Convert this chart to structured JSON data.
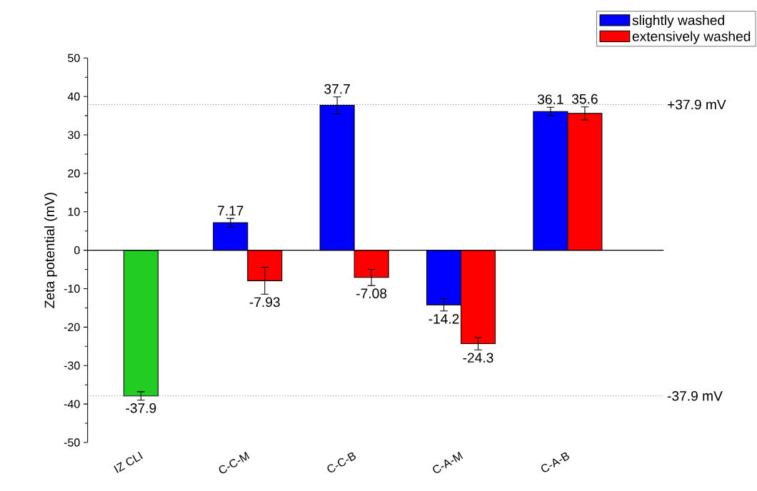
{
  "chart_data": {
    "type": "bar",
    "ylabel": "Zeta potential (mV)",
    "categories": [
      "IZ CLI",
      "C-C-M",
      "C-C-B",
      "C-A-M",
      "C-A-B"
    ],
    "series": [
      {
        "color": "#22cc22",
        "values": [
          -37.9,
          null,
          null,
          null,
          null
        ],
        "errors": [
          1.1,
          null,
          null,
          null,
          null
        ]
      },
      {
        "name": "slightly washed",
        "color": "#0000ff",
        "values": [
          null,
          7.17,
          37.7,
          -14.2,
          36.1
        ],
        "errors": [
          null,
          1.1,
          2.2,
          1.6,
          1.1
        ]
      },
      {
        "name": "extensively washed",
        "color": "#ff0000",
        "values": [
          null,
          -7.93,
          -7.08,
          -24.3,
          35.6
        ],
        "errors": [
          null,
          3.5,
          2.1,
          1.6,
          1.7
        ]
      }
    ],
    "ylim": [
      -50,
      50
    ],
    "yticks": [
      -50,
      -40,
      -30,
      -20,
      -10,
      0,
      10,
      20,
      30,
      40,
      50
    ],
    "ref_lines": [
      {
        "axis": "y",
        "value": 37.9,
        "label": "+37.9 mV",
        "color": "#808080",
        "line_style": "dotted"
      },
      {
        "axis": "y",
        "value": -37.9,
        "label": "-37.9 mV",
        "color": "#808080",
        "line_style": "dotted"
      }
    ],
    "data_labels": true,
    "legend": "top right"
  }
}
